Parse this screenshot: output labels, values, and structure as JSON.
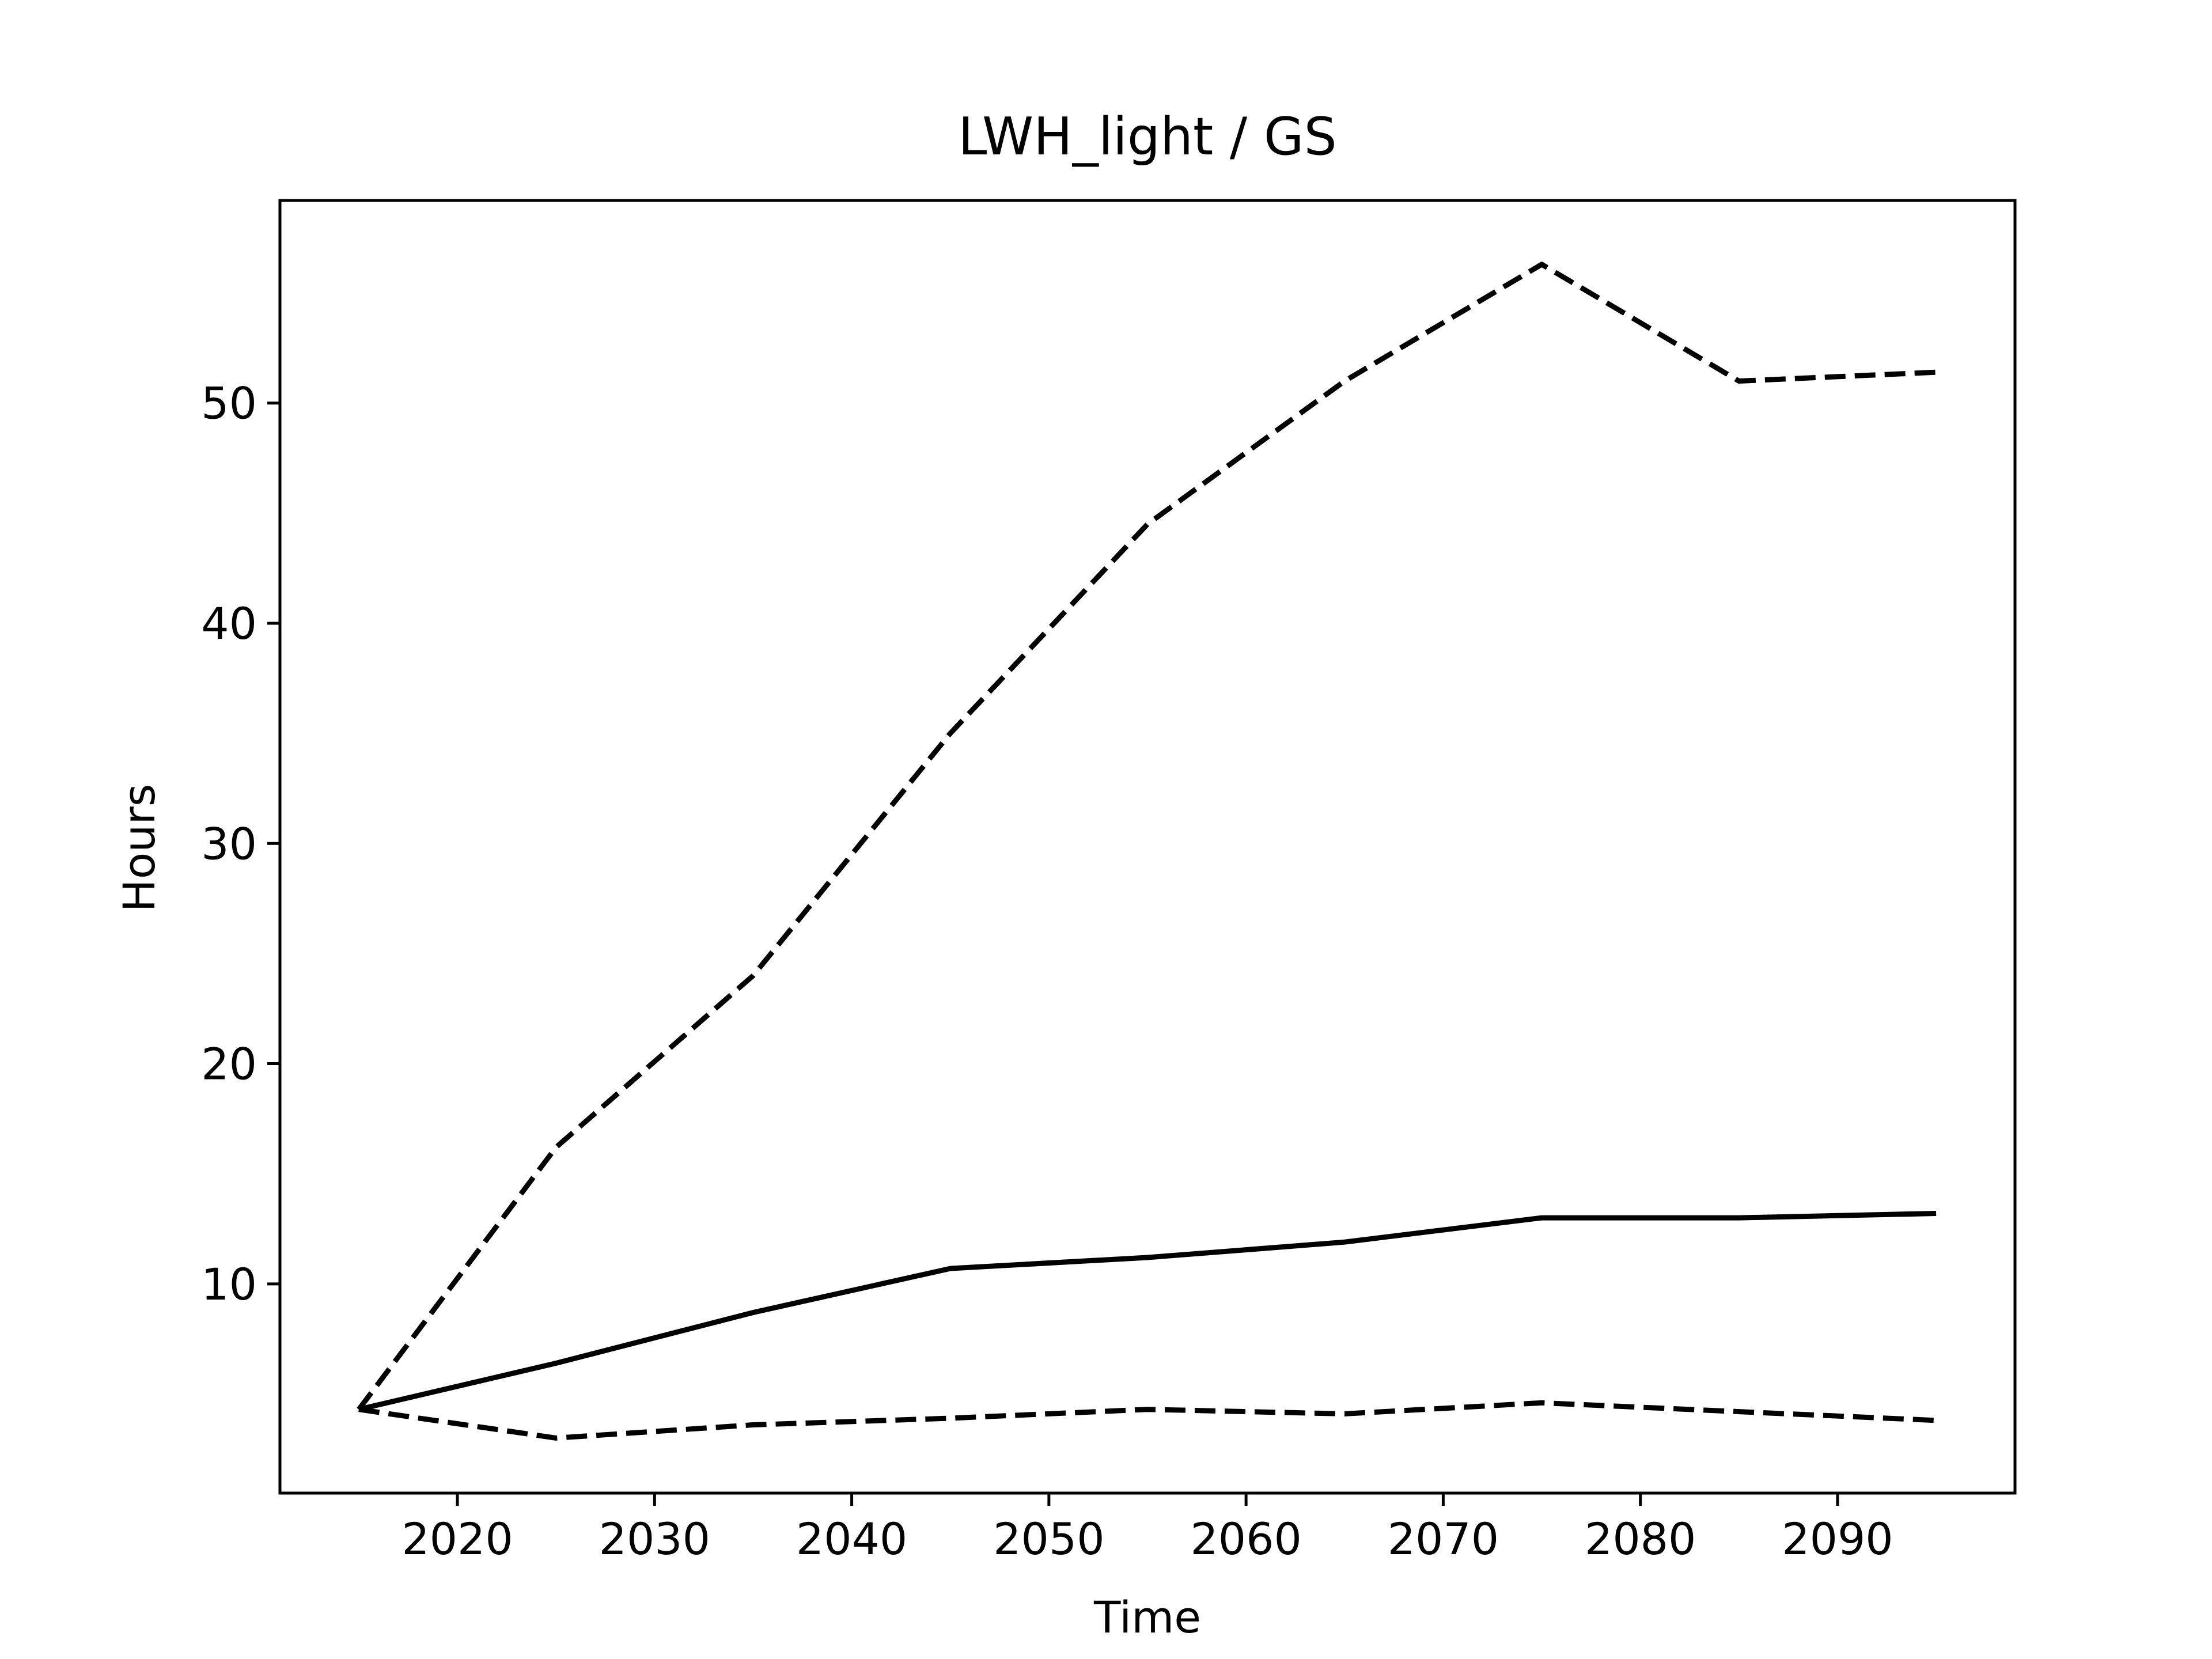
{
  "chart_data": {
    "type": "line",
    "title": "LWH_light / GS",
    "xlabel": "Time",
    "ylabel": "Hours",
    "x": [
      2015,
      2025,
      2035,
      2045,
      2055,
      2065,
      2075,
      2085,
      2095
    ],
    "xticks": [
      2020,
      2030,
      2040,
      2050,
      2060,
      2070,
      2080,
      2090
    ],
    "yticks": [
      10,
      20,
      30,
      40,
      50
    ],
    "xlim": [
      2011,
      2099
    ],
    "ylim": [
      0.5,
      59.2
    ],
    "grid": false,
    "legend": "none",
    "series": [
      {
        "style": "solid",
        "color": "#000000",
        "values": [
          4.3,
          6.4,
          8.7,
          10.7,
          11.2,
          11.9,
          13.0,
          13.0,
          13.2
        ]
      },
      {
        "style": "dashed",
        "color": "#000000",
        "values": [
          4.3,
          16.2,
          24.0,
          35.0,
          44.5,
          51.0,
          56.3,
          51.0,
          51.4
        ]
      },
      {
        "style": "dashed",
        "color": "#000000",
        "values": [
          4.3,
          3.0,
          3.6,
          3.9,
          4.3,
          4.1,
          4.6,
          4.2,
          3.8
        ]
      }
    ]
  }
}
